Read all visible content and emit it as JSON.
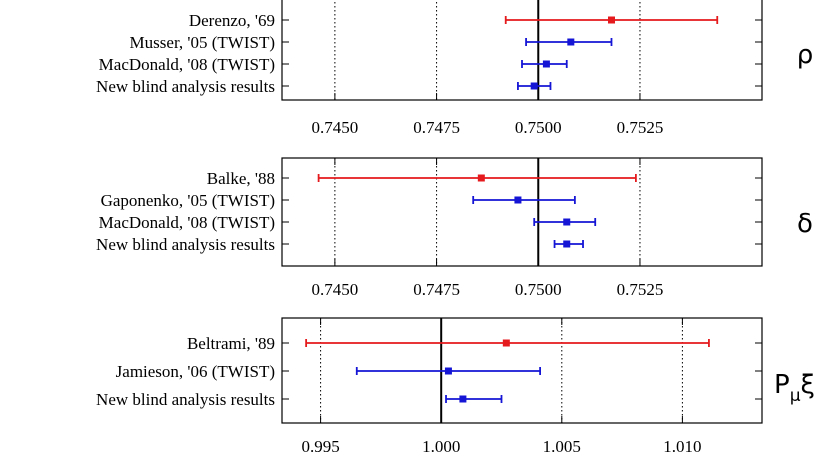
{
  "colors": {
    "previous": "#e41a1c",
    "twist": "#1515d6",
    "axis": "#000000",
    "grid": "#000000"
  },
  "chart_data": [
    {
      "type": "scatter",
      "symbol": "ρ",
      "xlim": [
        0.7437,
        0.7555
      ],
      "xticks": [
        0.745,
        0.7475,
        0.75,
        0.7525
      ],
      "xtick_labels": [
        "0.7450",
        "0.7475",
        "0.7500",
        "0.7525"
      ],
      "reference": 0.75,
      "grid": "vertical dotted",
      "points": [
        {
          "label": "Derenzo, '69",
          "x": 0.7518,
          "low": 0.7492,
          "high": 0.7544,
          "group": "previous"
        },
        {
          "label": "Musser, '05 (TWIST)",
          "x": 0.7508,
          "low": 0.7497,
          "high": 0.7518,
          "group": "twist"
        },
        {
          "label": "MacDonald, '08 (TWIST)",
          "x": 0.7502,
          "low": 0.7496,
          "high": 0.7507,
          "group": "twist"
        },
        {
          "label": "New blind analysis results",
          "x": 0.7499,
          "low": 0.7495,
          "high": 0.7503,
          "group": "twist"
        }
      ]
    },
    {
      "type": "scatter",
      "symbol": "δ",
      "xlim": [
        0.7437,
        0.7555
      ],
      "xticks": [
        0.745,
        0.7475,
        0.75,
        0.7525
      ],
      "xtick_labels": [
        "0.7450",
        "0.7475",
        "0.7500",
        "0.7525"
      ],
      "reference": 0.75,
      "grid": "vertical dotted",
      "points": [
        {
          "label": "Balke, '88",
          "x": 0.7486,
          "low": 0.7446,
          "high": 0.7524,
          "group": "previous"
        },
        {
          "label": "Gaponenko, '05 (TWIST)",
          "x": 0.7495,
          "low": 0.7484,
          "high": 0.7509,
          "group": "twist"
        },
        {
          "label": "MacDonald, '08 (TWIST)",
          "x": 0.7507,
          "low": 0.7499,
          "high": 0.7514,
          "group": "twist"
        },
        {
          "label": "New blind analysis results",
          "x": 0.7507,
          "low": 0.7504,
          "high": 0.7511,
          "group": "twist"
        }
      ]
    },
    {
      "type": "scatter",
      "symbol": "Pμξ",
      "symbol_main": "P",
      "symbol_sub": "μ",
      "symbol_tail": "ξ",
      "xlim": [
        0.9934,
        1.0133
      ],
      "xticks": [
        0.995,
        1.0,
        1.005,
        1.01
      ],
      "xtick_labels": [
        "0.995",
        "1.000",
        "1.005",
        "1.010"
      ],
      "reference": 1.0,
      "grid": "vertical dotted",
      "points": [
        {
          "label": "Beltrami, '89",
          "x": 1.0027,
          "low": 0.9944,
          "high": 1.0111,
          "group": "previous"
        },
        {
          "label": "Jamieson, '06 (TWIST)",
          "x": 1.0003,
          "low": 0.9965,
          "high": 1.0041,
          "group": "twist"
        },
        {
          "label": "New blind analysis results",
          "x": 1.0009,
          "low": 1.0002,
          "high": 1.0025,
          "group": "twist"
        }
      ]
    }
  ]
}
